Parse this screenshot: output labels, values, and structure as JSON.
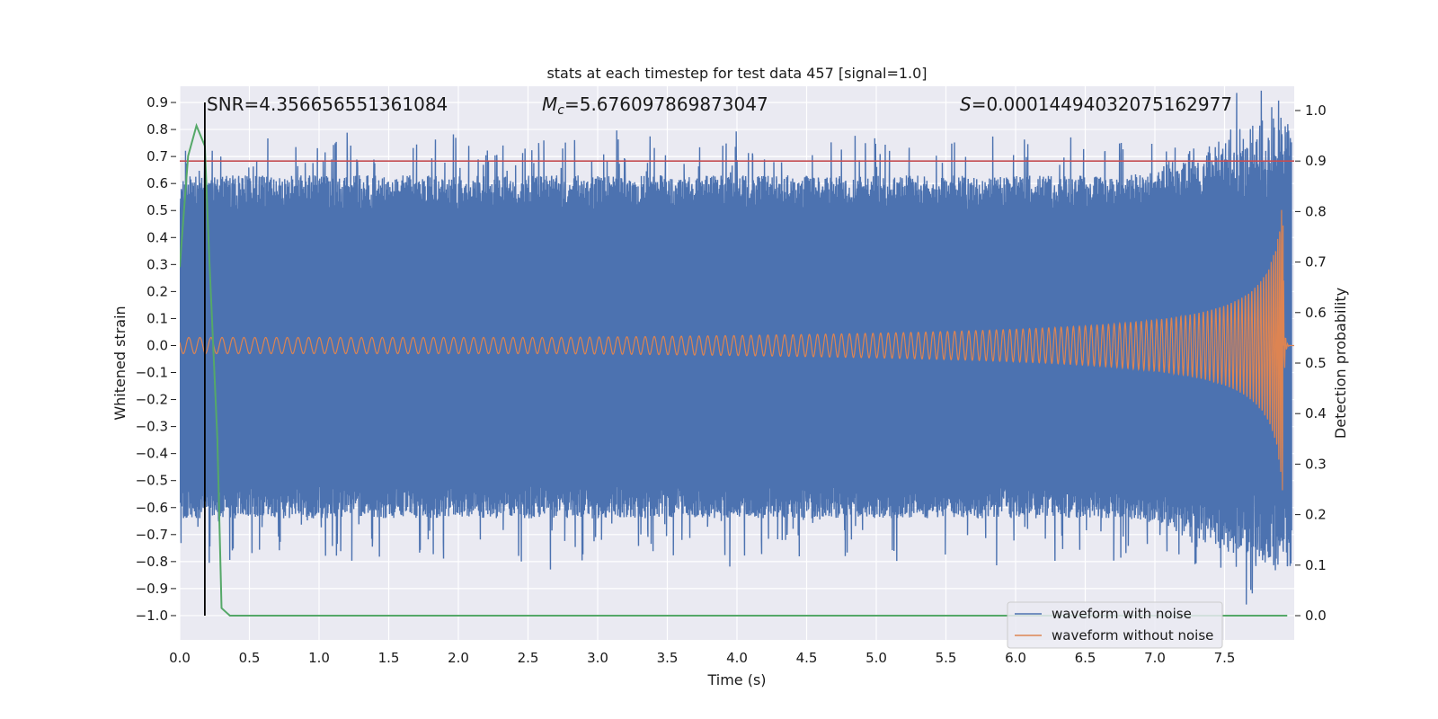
{
  "chart_data": {
    "type": "line",
    "title": "stats at each timestep for test data 457 [signal=1.0]",
    "xlabel": "Time (s)",
    "ylabel_left": "Whitened strain",
    "ylabel_right": "Detection probability",
    "xlim": [
      0.0,
      8.0
    ],
    "ylim_left": [
      -1.09,
      0.96
    ],
    "ylim_right": [
      -0.048,
      1.048
    ],
    "x_ticks": [
      "0.0",
      "0.5",
      "1.0",
      "1.5",
      "2.0",
      "2.5",
      "3.0",
      "3.5",
      "4.0",
      "4.5",
      "5.0",
      "5.5",
      "6.0",
      "6.5",
      "7.0",
      "7.5"
    ],
    "y_left_ticks": [
      "0.9",
      "0.8",
      "0.7",
      "0.6",
      "0.5",
      "0.4",
      "0.3",
      "0.2",
      "0.1",
      "0.0",
      "−0.1",
      "−0.2",
      "−0.3",
      "−0.4",
      "−0.5",
      "−0.6",
      "−0.7",
      "−0.8",
      "−0.9",
      "−1.0"
    ],
    "y_left_tick_values": [
      0.9,
      0.8,
      0.7,
      0.6,
      0.5,
      0.4,
      0.3,
      0.2,
      0.1,
      0.0,
      -0.1,
      -0.2,
      -0.3,
      -0.4,
      -0.5,
      -0.6,
      -0.7,
      -0.8,
      -0.9,
      -1.0
    ],
    "y_right_ticks": [
      "1.0",
      "0.9",
      "0.8",
      "0.7",
      "0.6",
      "0.5",
      "0.4",
      "0.3",
      "0.2",
      "0.1",
      "0.0"
    ],
    "y_right_tick_values": [
      1.0,
      0.9,
      0.8,
      0.7,
      0.6,
      0.5,
      0.4,
      0.3,
      0.2,
      0.1,
      0.0
    ],
    "annotations": {
      "snr": "SNR=4.356656551361084",
      "mc_symbol": "M",
      "mc_sub": "c",
      "mc_value": "=5.676097869873047",
      "s_symbol": "S",
      "s_value": "=0.00014494032075162977"
    },
    "series": [
      {
        "name": "waveform with noise",
        "color": "#4c72b0",
        "axis": "left",
        "description": "noisy whitened strain, envelope about ±0.6, peaks to ±0.9 near 7.8 s"
      },
      {
        "name": "waveform without noise",
        "color": "#dd8452",
        "axis": "left",
        "description": "chirp: amplitude ~0.03 at 0 s growing to ~0.63 at 7.9 s, then ringdown to 0"
      },
      {
        "name": "detection probability",
        "color": "#55a868",
        "axis": "right",
        "x": [
          0.0,
          0.06,
          0.12,
          0.18,
          0.21,
          0.27,
          0.3,
          0.36,
          0.4,
          7.95
        ],
        "y": [
          0.69,
          0.91,
          0.97,
          0.93,
          0.72,
          0.35,
          0.015,
          0.0,
          0.0,
          0.0
        ]
      }
    ],
    "threshold_line": {
      "axis": "right",
      "value": 0.9,
      "color": "#c44e52"
    },
    "vertical_line": {
      "x": 0.18,
      "color": "#000000"
    },
    "legend": {
      "location": "bottom-right",
      "entries": [
        "waveform with noise",
        "waveform without noise"
      ]
    }
  }
}
